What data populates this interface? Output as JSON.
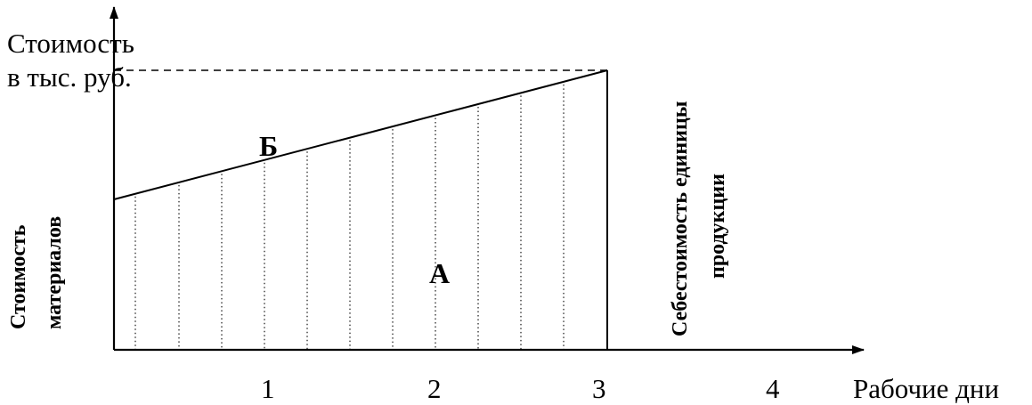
{
  "diagram": {
    "y_axis_title_line1": "Стоимость",
    "y_axis_title_line2": "в тыс. руб.",
    "x_axis_title": "Рабочие дни",
    "x_ticks": [
      "1",
      "2",
      "3",
      "4"
    ],
    "region_upper_label": "Б",
    "region_lower_label": "А",
    "left_side_label_line1": "Стоимость",
    "left_side_label_line2": "материалов",
    "right_side_label_line1": "Себестоимость единицы",
    "right_side_label_line2": "продукции"
  }
}
